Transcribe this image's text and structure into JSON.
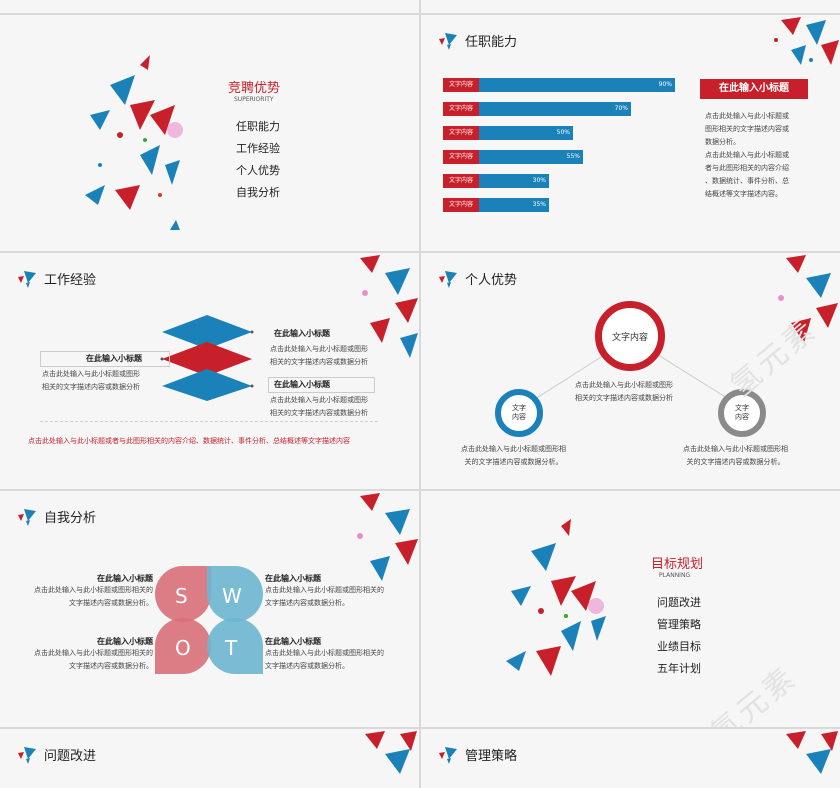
{
  "slide1": {
    "title": "竞聘优势",
    "subtitle": "SUPERIORITY",
    "menu": [
      "任职能力",
      "工作经验",
      "个人优势",
      "自我分析"
    ]
  },
  "slide2": {
    "title": "任职能力",
    "bars": [
      {
        "label": "文字内容",
        "value_text": "90%",
        "value": 90
      },
      {
        "label": "文字内容",
        "value_text": "70%",
        "value": 70
      },
      {
        "label": "文字内容",
        "value_text": "50%",
        "value": 50
      },
      {
        "label": "文字内容",
        "value_text": "55%",
        "value": 55
      },
      {
        "label": "文字内容",
        "value_text": "30%",
        "value": 30
      },
      {
        "label": "文字内容",
        "value_text": "35%",
        "value": 35
      }
    ],
    "heading": "在此输入小标题",
    "para1_l1": "点击此处输入与此小标题或",
    "para1_l2": "图形相关的文字描述内容或",
    "para1_l3": "数据分析。",
    "para2_l1": "点击此处输入与此小标题或",
    "para2_l2": "者与此图形相关的内容介绍",
    "para2_l3": "、数据统计、事件分析、总",
    "para2_l4": "结概述等文字描述内容。"
  },
  "slide3": {
    "title": "工作经验",
    "left_heading": "在此输入小标题",
    "left_l1": "点击此处输入与此小标题或图形",
    "left_l2": "相关的文字描述内容或数据分析",
    "r1_heading": "在此输入小标题",
    "r1_l1": "点击此处输入与此小标题或图形",
    "r1_l2": "相关的文字描述内容或数据分析",
    "r2_heading": "在此输入小标题",
    "r2_l1": "点击此处输入与此小标题或图形",
    "r2_l2": "相关的文字描述内容或数据分析",
    "footer": "点击此处输入与此小标题或者与此图形相关的内容介绍、数据统计、事件分析、总结概述等文字描述内容"
  },
  "slide4": {
    "title": "个人优势",
    "center_label": "文字内容",
    "left_label_l1": "文字",
    "left_label_l2": "内容",
    "right_label_l1": "文字",
    "right_label_l2": "内容",
    "center_l1": "点击此处输入与此小标题或图形",
    "center_l2": "相关的文字描述内容或数据分析",
    "left_l1": "点击此处输入与此小标题或图形相",
    "left_l2": "关的文字描述内容或数据分析。",
    "right_l1": "点击此处输入与此小标题或图形相",
    "right_l2": "关的文字描述内容或数据分析。"
  },
  "slide5": {
    "title": "自我分析",
    "letters": [
      "S",
      "W",
      "O",
      "T"
    ],
    "items": [
      {
        "heading": "在此输入小标题",
        "l1": "点击此处输入与此小标题或图形相关的",
        "l2": "文字描述内容或数据分析。"
      },
      {
        "heading": "在此输入小标题",
        "l1": "点击此处输入与此小标题或图形相关的",
        "l2": "文字描述内容或数据分析。"
      },
      {
        "heading": "在此输入小标题",
        "l1": "点击此处输入与此小标题或图形相关的",
        "l2": "文字描述内容或数据分析。"
      },
      {
        "heading": "在此输入小标题",
        "l1": "点击此处输入与此小标题或图形相关的",
        "l2": "文字描述内容或数据分析。"
      }
    ]
  },
  "slide6": {
    "title": "目标规划",
    "subtitle": "PLANNING",
    "menu": [
      "问题改进",
      "管理策略",
      "业绩目标",
      "五年计划"
    ]
  },
  "slide7": {
    "title": "问题改进"
  },
  "slide8": {
    "title": "管理策略"
  },
  "watermark": "氢元素",
  "colors": {
    "red": "#c8202a",
    "blue": "#1a82b8",
    "gray": "#8a8a8a"
  }
}
